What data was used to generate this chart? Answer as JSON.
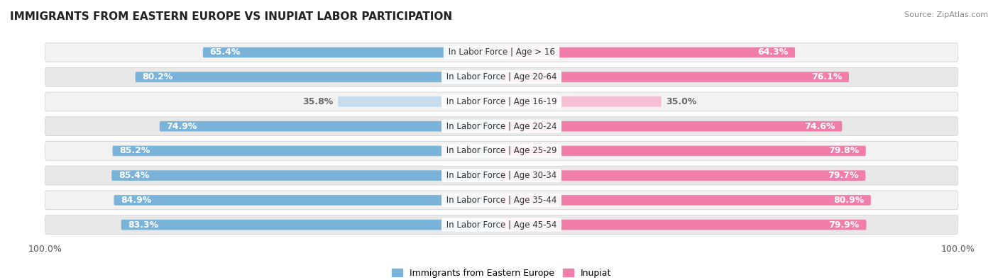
{
  "title": "IMMIGRANTS FROM EASTERN EUROPE VS INUPIAT LABOR PARTICIPATION",
  "source": "Source: ZipAtlas.com",
  "categories": [
    "In Labor Force | Age > 16",
    "In Labor Force | Age 20-64",
    "In Labor Force | Age 16-19",
    "In Labor Force | Age 20-24",
    "In Labor Force | Age 25-29",
    "In Labor Force | Age 30-34",
    "In Labor Force | Age 35-44",
    "In Labor Force | Age 45-54"
  ],
  "eastern_europe_values": [
    65.4,
    80.2,
    35.8,
    74.9,
    85.2,
    85.4,
    84.9,
    83.3
  ],
  "inupiat_values": [
    64.3,
    76.1,
    35.0,
    74.6,
    79.8,
    79.7,
    80.9,
    79.9
  ],
  "eastern_europe_color": "#7ab3d9",
  "eastern_europe_color_light": "#c5dcee",
  "inupiat_color": "#f07daa",
  "inupiat_color_light": "#f7bdd5",
  "row_bg_color_odd": "#f2f2f2",
  "row_bg_color_even": "#e8e8e8",
  "label_color_white": "#ffffff",
  "label_color_dark": "#666666",
  "max_value": 100.0,
  "legend_label_eastern": "Immigrants from Eastern Europe",
  "legend_label_inupiat": "Inupiat",
  "title_fontsize": 11,
  "bar_label_fontsize": 9,
  "cat_label_fontsize": 8.5,
  "legend_fontsize": 9,
  "axis_tick_fontsize": 9
}
